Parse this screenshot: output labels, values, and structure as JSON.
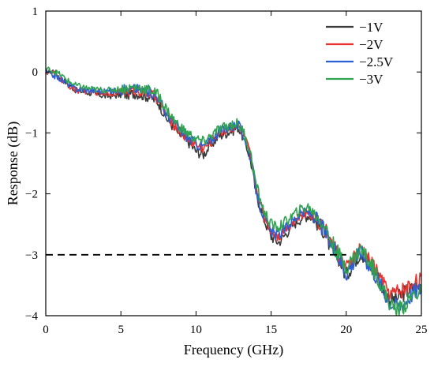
{
  "chart_data": {
    "type": "line",
    "title": "",
    "xlabel": "Frequency (GHz)",
    "ylabel": "Response (dB)",
    "xlim": [
      0,
      25
    ],
    "ylim": [
      -4,
      1
    ],
    "xticks": [
      0,
      5,
      10,
      15,
      20,
      25
    ],
    "xtick_labels": [
      "0",
      "5",
      "10",
      "15",
      "20",
      "25"
    ],
    "yticks": [
      1,
      0,
      -1,
      -2,
      -3,
      -4
    ],
    "ytick_labels": [
      "1",
      "0",
      "−1",
      "−2",
      "−3",
      "−4"
    ],
    "grid": false,
    "legend_position": "top-right",
    "reference_line": {
      "y": -3,
      "x_range": [
        0,
        20
      ],
      "style": "dashed",
      "color": "#000000"
    },
    "series": [
      {
        "name": "−1V",
        "color": "#3a3a3a",
        "x": [
          0,
          0.5,
          1,
          1.5,
          2,
          3,
          4,
          5,
          6,
          7,
          7.5,
          8,
          8.5,
          9,
          9.5,
          10,
          10.5,
          11,
          11.5,
          12,
          12.5,
          12.8,
          13.2,
          13.6,
          14,
          14.5,
          15,
          15.5,
          16,
          16.5,
          17,
          17.5,
          18,
          18.5,
          19,
          19.5,
          20,
          20.5,
          21,
          21.5,
          22,
          22.5,
          23,
          23.5,
          24,
          24.5,
          25
        ],
        "y": [
          0.0,
          0.02,
          -0.1,
          -0.2,
          -0.3,
          -0.35,
          -0.4,
          -0.38,
          -0.35,
          -0.42,
          -0.5,
          -0.75,
          -0.9,
          -1.05,
          -1.15,
          -1.3,
          -1.35,
          -1.2,
          -1.05,
          -1.0,
          -0.95,
          -0.9,
          -1.1,
          -1.4,
          -2.0,
          -2.4,
          -2.7,
          -2.8,
          -2.65,
          -2.5,
          -2.4,
          -2.35,
          -2.45,
          -2.6,
          -2.9,
          -3.05,
          -3.35,
          -3.1,
          -2.95,
          -3.15,
          -3.3,
          -3.6,
          -3.75,
          -3.7,
          -3.6,
          -3.55,
          -3.5
        ]
      },
      {
        "name": "−2V",
        "color": "#e8322e",
        "x": [
          0,
          0.5,
          1,
          1.5,
          2,
          3,
          4,
          5,
          6,
          7,
          7.5,
          8,
          8.5,
          9,
          9.5,
          10,
          10.5,
          11,
          11.5,
          12,
          12.5,
          12.8,
          13.2,
          13.6,
          14,
          14.5,
          15,
          15.5,
          16,
          16.5,
          17,
          17.5,
          18,
          18.5,
          19,
          19.5,
          20,
          20.5,
          21,
          21.5,
          22,
          22.5,
          23,
          23.5,
          24,
          24.5,
          25
        ],
        "y": [
          0.0,
          -0.02,
          -0.12,
          -0.22,
          -0.3,
          -0.32,
          -0.35,
          -0.33,
          -0.3,
          -0.36,
          -0.45,
          -0.7,
          -0.85,
          -1.0,
          -1.1,
          -1.2,
          -1.25,
          -1.15,
          -1.0,
          -0.95,
          -0.9,
          -0.88,
          -1.05,
          -1.35,
          -1.9,
          -2.35,
          -2.6,
          -2.7,
          -2.55,
          -2.45,
          -2.35,
          -2.3,
          -2.4,
          -2.55,
          -2.8,
          -3.0,
          -3.25,
          -3.05,
          -2.9,
          -3.1,
          -3.25,
          -3.5,
          -3.65,
          -3.6,
          -3.55,
          -3.45,
          -3.4
        ]
      },
      {
        "name": "−2.5V",
        "color": "#2a5fd6",
        "x": [
          0,
          0.5,
          1,
          1.5,
          2,
          3,
          4,
          5,
          6,
          7,
          7.5,
          8,
          8.5,
          9,
          9.5,
          10,
          10.5,
          11,
          11.5,
          12,
          12.5,
          12.8,
          13.2,
          13.6,
          14,
          14.5,
          15,
          15.5,
          16,
          16.5,
          17,
          17.5,
          18,
          18.5,
          19,
          19.5,
          20,
          20.5,
          21,
          21.5,
          22,
          22.5,
          23,
          23.5,
          24,
          24.5,
          25
        ],
        "y": [
          0.0,
          -0.05,
          -0.12,
          -0.2,
          -0.28,
          -0.3,
          -0.32,
          -0.3,
          -0.27,
          -0.33,
          -0.42,
          -0.68,
          -0.82,
          -0.98,
          -1.08,
          -1.18,
          -1.22,
          -1.12,
          -0.98,
          -0.92,
          -0.88,
          -0.87,
          -1.05,
          -1.38,
          -1.95,
          -2.38,
          -2.62,
          -2.68,
          -2.55,
          -2.42,
          -2.32,
          -2.3,
          -2.42,
          -2.58,
          -2.85,
          -3.05,
          -3.3,
          -3.1,
          -2.95,
          -3.15,
          -3.35,
          -3.6,
          -3.8,
          -3.85,
          -3.75,
          -3.6,
          -3.55
        ]
      },
      {
        "name": "−3V",
        "color": "#2ea350",
        "x": [
          0,
          0.5,
          1,
          1.5,
          2,
          3,
          4,
          5,
          6,
          7,
          7.5,
          8,
          8.5,
          9,
          9.5,
          10,
          10.5,
          11,
          11.5,
          12,
          12.5,
          12.8,
          13.2,
          13.6,
          14,
          14.5,
          15,
          15.5,
          16,
          16.5,
          17,
          17.5,
          18,
          18.5,
          19,
          19.5,
          20,
          20.5,
          21,
          21.5,
          22,
          22.5,
          23,
          23.5,
          24,
          24.5,
          25
        ],
        "y": [
          0.05,
          0.02,
          -0.05,
          -0.15,
          -0.22,
          -0.28,
          -0.3,
          -0.28,
          -0.25,
          -0.3,
          -0.38,
          -0.6,
          -0.78,
          -0.92,
          -1.02,
          -1.1,
          -1.15,
          -1.05,
          -0.95,
          -0.9,
          -0.85,
          -0.85,
          -1.0,
          -1.3,
          -1.85,
          -2.28,
          -2.5,
          -2.55,
          -2.45,
          -2.35,
          -2.25,
          -2.22,
          -2.35,
          -2.5,
          -2.78,
          -3.0,
          -3.2,
          -3.05,
          -2.9,
          -3.1,
          -3.3,
          -3.6,
          -3.85,
          -3.9,
          -3.8,
          -3.65,
          -3.6
        ]
      }
    ]
  }
}
